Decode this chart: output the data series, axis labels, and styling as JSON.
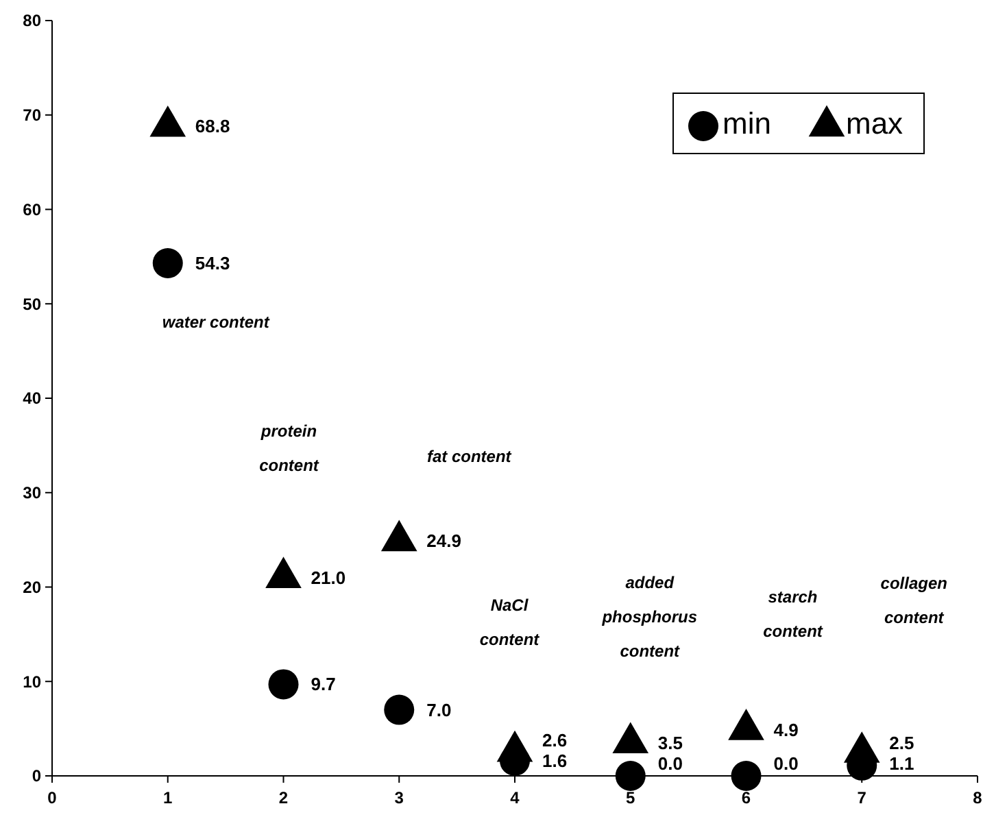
{
  "chart_data": {
    "type": "scatter",
    "xlim": [
      0,
      8
    ],
    "ylim": [
      0,
      80
    ],
    "xticks": [
      0,
      1,
      2,
      3,
      4,
      5,
      6,
      7,
      8
    ],
    "yticks": [
      0,
      10,
      20,
      30,
      40,
      50,
      60,
      70,
      80
    ],
    "grid": false,
    "legend": "top right",
    "x": [
      1,
      2,
      3,
      4,
      5,
      6,
      7
    ],
    "series": [
      {
        "name": "min",
        "color": "#000000",
        "marker": "circle",
        "values": [
          54.3,
          9.7,
          7.0,
          1.6,
          0.0,
          0.0,
          1.1
        ],
        "value_labels": [
          "54.3",
          "9.7",
          "7.0",
          "1.6",
          "0.0",
          "0.0",
          "1.1"
        ]
      },
      {
        "name": "max",
        "color": "#000000",
        "marker": "triangle",
        "values": [
          68.8,
          21.0,
          24.9,
          2.6,
          3.5,
          4.9,
          2.5
        ],
        "value_labels": [
          "68.8",
          "21.0",
          "24.9",
          "2.6",
          "3.5",
          "4.9",
          "2.5"
        ]
      }
    ],
    "annotations": [
      "water content",
      "protein\ncontent",
      "fat content",
      "NaCl\ncontent",
      "added\nphosphorus\ncontent",
      "starch\ncontent",
      "collagen\ncontent"
    ]
  }
}
